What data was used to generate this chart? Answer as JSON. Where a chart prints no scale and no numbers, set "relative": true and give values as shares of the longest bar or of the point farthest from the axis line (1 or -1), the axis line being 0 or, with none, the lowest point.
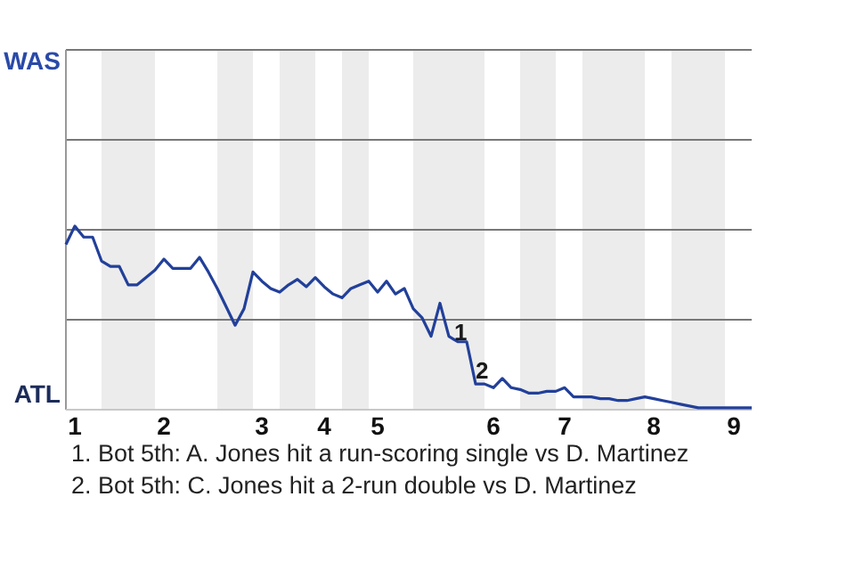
{
  "chart_data": {
    "type": "line",
    "relative": true,
    "categories": [
      null,
      "1",
      null,
      null,
      null,
      null,
      null,
      null,
      null,
      null,
      null,
      "2",
      null,
      null,
      null,
      null,
      null,
      null,
      null,
      null,
      null,
      null,
      "3",
      null,
      null,
      null,
      null,
      null,
      null,
      "4",
      null,
      null,
      null,
      null,
      null,
      "5",
      null,
      null,
      null,
      null,
      null,
      null,
      null,
      null,
      null,
      null,
      null,
      null,
      "6",
      null,
      null,
      null,
      null,
      null,
      null,
      null,
      "7",
      null,
      null,
      null,
      null,
      null,
      null,
      null,
      null,
      null,
      "8",
      null,
      null,
      null,
      null,
      null,
      null,
      null,
      null,
      "9",
      null,
      null
    ],
    "series": [
      {
        "color": "#22409a",
        "values": [
          0.9,
          1,
          0.94,
          0.94,
          0.81,
          0.78,
          0.78,
          0.68,
          0.68,
          0.72,
          0.76,
          0.82,
          0.77,
          0.77,
          0.77,
          0.83,
          0.75,
          0.66,
          0.56,
          0.46,
          0.55,
          0.75,
          0.7,
          0.66,
          0.64,
          0.68,
          0.71,
          0.67,
          0.72,
          0.67,
          0.63,
          0.61,
          0.66,
          0.68,
          0.7,
          0.64,
          0.7,
          0.63,
          0.66,
          0.55,
          0.5,
          0.4,
          0.58,
          0.4,
          0.37,
          0.37,
          0.14,
          0.14,
          0.12,
          0.17,
          0.12,
          0.11,
          0.09,
          0.09,
          0.1,
          0.1,
          0.12,
          0.07,
          0.07,
          0.07,
          0.06,
          0.06,
          0.05,
          0.05,
          0.06,
          0.07,
          0.06,
          0.05,
          0.04,
          0.03,
          0.02,
          0.01,
          0.01,
          0.01,
          0.01,
          0.01,
          0.01,
          0.01
        ]
      }
    ],
    "marker": "none",
    "ref_lines": [
      {
        "axis": "y",
        "value": 0.49,
        "color": "#777777"
      },
      {
        "axis": "y",
        "value": 0.98,
        "color": "#777777"
      },
      {
        "axis": "y",
        "value": 1.47,
        "color": "#777777"
      },
      {
        "axis": "y",
        "value": 1.96,
        "color": "#777777"
      }
    ],
    "annotations": [
      {
        "text": "1",
        "y": 0.37
      },
      {
        "text": "2",
        "y": 0.14
      },
      "WAS",
      "ATL",
      "1. Bot 5th: A. Jones hit a run-scoring single vs D. Martinez",
      "2. Bot 5th: C. Jones hit a 2-run double vs D. Martinez"
    ]
  }
}
